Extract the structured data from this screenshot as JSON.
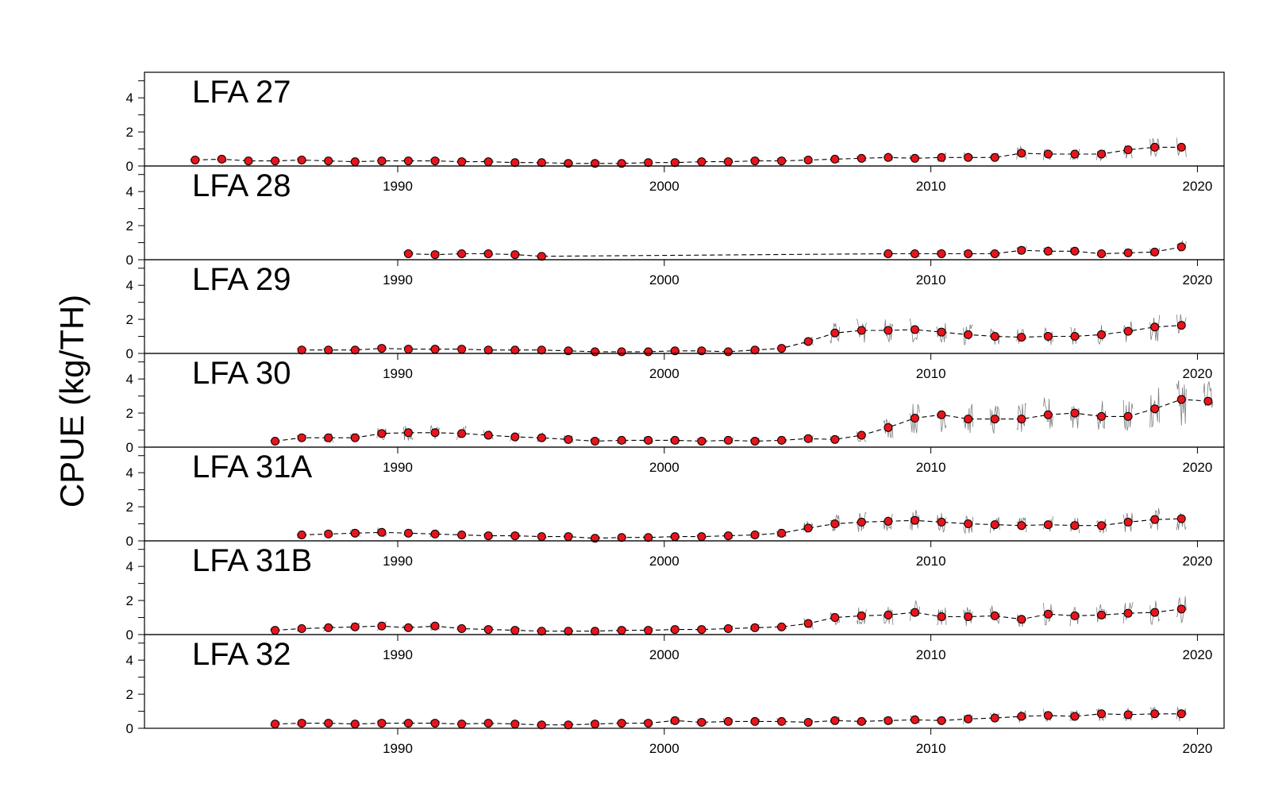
{
  "chart_data": {
    "type": "scatter",
    "ylabel": "CPUE (kg/TH)",
    "xlim": [
      1980.5,
      2021.0
    ],
    "ylim": [
      0,
      5.5
    ],
    "x_ticks": [
      1990,
      2000,
      2010,
      2020
    ],
    "y_ticks": [
      0,
      2,
      4
    ],
    "colors": {
      "point": "#e8141c",
      "line": "#000000",
      "daily": "#666666"
    },
    "panels": [
      {
        "name": "LFA 27",
        "points": [
          [
            1982,
            0.35
          ],
          [
            1983,
            0.4
          ],
          [
            1984,
            0.3
          ],
          [
            1985,
            0.3
          ],
          [
            1986,
            0.35
          ],
          [
            1987,
            0.3
          ],
          [
            1988,
            0.25
          ],
          [
            1989,
            0.3
          ],
          [
            1990,
            0.3
          ],
          [
            1991,
            0.3
          ],
          [
            1992,
            0.25
          ],
          [
            1993,
            0.25
          ],
          [
            1994,
            0.2
          ],
          [
            1995,
            0.2
          ],
          [
            1996,
            0.15
          ],
          [
            1997,
            0.15
          ],
          [
            1998,
            0.15
          ],
          [
            1999,
            0.2
          ],
          [
            2000,
            0.2
          ],
          [
            2001,
            0.25
          ],
          [
            2002,
            0.25
          ],
          [
            2003,
            0.3
          ],
          [
            2004,
            0.3
          ],
          [
            2005,
            0.35
          ],
          [
            2006,
            0.4
          ],
          [
            2007,
            0.45
          ],
          [
            2008,
            0.5
          ],
          [
            2009,
            0.45
          ],
          [
            2010,
            0.5
          ],
          [
            2011,
            0.5
          ],
          [
            2012,
            0.5
          ],
          [
            2013,
            0.75
          ],
          [
            2014,
            0.7
          ],
          [
            2015,
            0.7
          ],
          [
            2016,
            0.7
          ],
          [
            2017,
            0.95
          ],
          [
            2018,
            1.1
          ],
          [
            2019,
            1.1
          ]
        ]
      },
      {
        "name": "LFA 28",
        "points": [
          [
            1990,
            0.35
          ],
          [
            1991,
            0.3
          ],
          [
            1992,
            0.35
          ],
          [
            1993,
            0.35
          ],
          [
            1994,
            0.3
          ],
          [
            1995,
            0.2
          ],
          [
            2008,
            0.35
          ],
          [
            2009,
            0.35
          ],
          [
            2010,
            0.35
          ],
          [
            2011,
            0.35
          ],
          [
            2012,
            0.35
          ],
          [
            2013,
            0.55
          ],
          [
            2014,
            0.5
          ],
          [
            2015,
            0.5
          ],
          [
            2016,
            0.35
          ],
          [
            2017,
            0.4
          ],
          [
            2018,
            0.45
          ],
          [
            2019,
            0.75
          ]
        ]
      },
      {
        "name": "LFA 29",
        "points": [
          [
            1986,
            0.2
          ],
          [
            1987,
            0.2
          ],
          [
            1988,
            0.2
          ],
          [
            1989,
            0.3
          ],
          [
            1990,
            0.25
          ],
          [
            1991,
            0.25
          ],
          [
            1992,
            0.25
          ],
          [
            1993,
            0.2
          ],
          [
            1994,
            0.2
          ],
          [
            1995,
            0.2
          ],
          [
            1996,
            0.15
          ],
          [
            1997,
            0.1
          ],
          [
            1998,
            0.1
          ],
          [
            1999,
            0.1
          ],
          [
            2000,
            0.15
          ],
          [
            2001,
            0.15
          ],
          [
            2002,
            0.1
          ],
          [
            2003,
            0.2
          ],
          [
            2004,
            0.3
          ],
          [
            2005,
            0.7
          ],
          [
            2006,
            1.2
          ],
          [
            2007,
            1.35
          ],
          [
            2008,
            1.35
          ],
          [
            2009,
            1.4
          ],
          [
            2010,
            1.25
          ],
          [
            2011,
            1.1
          ],
          [
            2012,
            1.0
          ],
          [
            2013,
            0.95
          ],
          [
            2014,
            1.0
          ],
          [
            2015,
            1.0
          ],
          [
            2016,
            1.1
          ],
          [
            2017,
            1.3
          ],
          [
            2018,
            1.55
          ],
          [
            2019,
            1.65
          ]
        ]
      },
      {
        "name": "LFA 30",
        "points": [
          [
            1985,
            0.35
          ],
          [
            1986,
            0.55
          ],
          [
            1987,
            0.55
          ],
          [
            1988,
            0.55
          ],
          [
            1989,
            0.8
          ],
          [
            1990,
            0.85
          ],
          [
            1991,
            0.85
          ],
          [
            1992,
            0.8
          ],
          [
            1993,
            0.7
          ],
          [
            1994,
            0.6
          ],
          [
            1995,
            0.55
          ],
          [
            1996,
            0.45
          ],
          [
            1997,
            0.35
          ],
          [
            1998,
            0.4
          ],
          [
            1999,
            0.4
          ],
          [
            2000,
            0.4
          ],
          [
            2001,
            0.35
          ],
          [
            2002,
            0.4
          ],
          [
            2003,
            0.35
          ],
          [
            2004,
            0.4
          ],
          [
            2005,
            0.5
          ],
          [
            2006,
            0.45
          ],
          [
            2007,
            0.7
          ],
          [
            2008,
            1.15
          ],
          [
            2009,
            1.7
          ],
          [
            2010,
            1.9
          ],
          [
            2011,
            1.65
          ],
          [
            2012,
            1.65
          ],
          [
            2013,
            1.65
          ],
          [
            2014,
            1.9
          ],
          [
            2015,
            2.0
          ],
          [
            2016,
            1.8
          ],
          [
            2017,
            1.8
          ],
          [
            2018,
            2.25
          ],
          [
            2019,
            2.8
          ],
          [
            2020,
            2.7
          ]
        ]
      },
      {
        "name": "LFA 31A",
        "points": [
          [
            1986,
            0.35
          ],
          [
            1987,
            0.4
          ],
          [
            1988,
            0.45
          ],
          [
            1989,
            0.5
          ],
          [
            1990,
            0.45
          ],
          [
            1991,
            0.4
          ],
          [
            1992,
            0.35
          ],
          [
            1993,
            0.3
          ],
          [
            1994,
            0.3
          ],
          [
            1995,
            0.25
          ],
          [
            1996,
            0.25
          ],
          [
            1997,
            0.15
          ],
          [
            1998,
            0.2
          ],
          [
            1999,
            0.2
          ],
          [
            2000,
            0.25
          ],
          [
            2001,
            0.25
          ],
          [
            2002,
            0.3
          ],
          [
            2003,
            0.35
          ],
          [
            2004,
            0.45
          ],
          [
            2005,
            0.75
          ],
          [
            2006,
            1.0
          ],
          [
            2007,
            1.1
          ],
          [
            2008,
            1.15
          ],
          [
            2009,
            1.2
          ],
          [
            2010,
            1.1
          ],
          [
            2011,
            1.0
          ],
          [
            2012,
            0.95
          ],
          [
            2013,
            0.9
          ],
          [
            2014,
            0.95
          ],
          [
            2015,
            0.9
          ],
          [
            2016,
            0.9
          ],
          [
            2017,
            1.1
          ],
          [
            2018,
            1.25
          ],
          [
            2019,
            1.3
          ]
        ]
      },
      {
        "name": "LFA 31B",
        "points": [
          [
            1985,
            0.25
          ],
          [
            1986,
            0.35
          ],
          [
            1987,
            0.4
          ],
          [
            1988,
            0.45
          ],
          [
            1989,
            0.5
          ],
          [
            1990,
            0.4
          ],
          [
            1991,
            0.5
          ],
          [
            1992,
            0.35
          ],
          [
            1993,
            0.3
          ],
          [
            1994,
            0.25
          ],
          [
            1995,
            0.2
          ],
          [
            1996,
            0.2
          ],
          [
            1997,
            0.2
          ],
          [
            1998,
            0.25
          ],
          [
            1999,
            0.25
          ],
          [
            2000,
            0.3
          ],
          [
            2001,
            0.3
          ],
          [
            2002,
            0.35
          ],
          [
            2003,
            0.4
          ],
          [
            2004,
            0.45
          ],
          [
            2005,
            0.65
          ],
          [
            2006,
            1.0
          ],
          [
            2007,
            1.1
          ],
          [
            2008,
            1.15
          ],
          [
            2009,
            1.3
          ],
          [
            2010,
            1.05
          ],
          [
            2011,
            1.05
          ],
          [
            2012,
            1.1
          ],
          [
            2013,
            0.9
          ],
          [
            2014,
            1.2
          ],
          [
            2015,
            1.1
          ],
          [
            2016,
            1.15
          ],
          [
            2017,
            1.25
          ],
          [
            2018,
            1.3
          ],
          [
            2019,
            1.5
          ]
        ]
      },
      {
        "name": "LFA 32",
        "points": [
          [
            1985,
            0.25
          ],
          [
            1986,
            0.3
          ],
          [
            1987,
            0.3
          ],
          [
            1988,
            0.25
          ],
          [
            1989,
            0.3
          ],
          [
            1990,
            0.3
          ],
          [
            1991,
            0.3
          ],
          [
            1992,
            0.25
          ],
          [
            1993,
            0.3
          ],
          [
            1994,
            0.25
          ],
          [
            1995,
            0.2
          ],
          [
            1996,
            0.2
          ],
          [
            1997,
            0.25
          ],
          [
            1998,
            0.3
          ],
          [
            1999,
            0.3
          ],
          [
            2000,
            0.45
          ],
          [
            2001,
            0.35
          ],
          [
            2002,
            0.4
          ],
          [
            2003,
            0.4
          ],
          [
            2004,
            0.4
          ],
          [
            2005,
            0.35
          ],
          [
            2006,
            0.45
          ],
          [
            2007,
            0.4
          ],
          [
            2008,
            0.45
          ],
          [
            2009,
            0.5
          ],
          [
            2010,
            0.45
          ],
          [
            2011,
            0.55
          ],
          [
            2012,
            0.6
          ],
          [
            2013,
            0.7
          ],
          [
            2014,
            0.75
          ],
          [
            2015,
            0.7
          ],
          [
            2016,
            0.85
          ],
          [
            2017,
            0.8
          ],
          [
            2018,
            0.85
          ],
          [
            2019,
            0.85
          ]
        ]
      }
    ]
  }
}
